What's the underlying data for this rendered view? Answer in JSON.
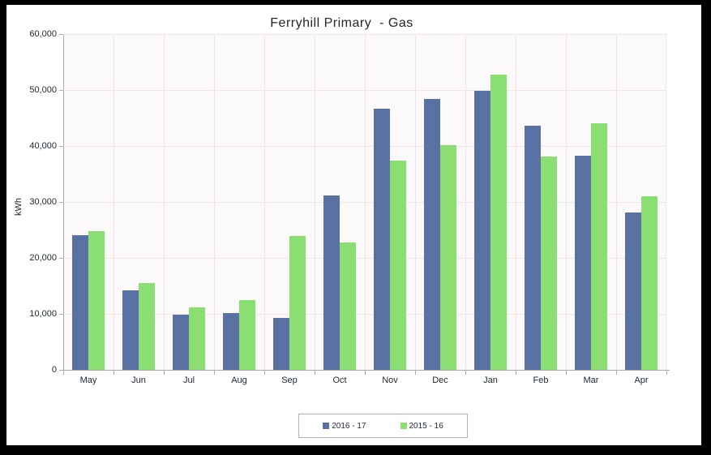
{
  "chart_data": {
    "type": "bar",
    "title": "Ferryhill Primary  - Gas",
    "categories": [
      "May",
      "Jun",
      "Jul",
      "Aug",
      "Sep",
      "Oct",
      "Nov",
      "Dec",
      "Jan",
      "Feb",
      "Mar",
      "Apr"
    ],
    "series": [
      {
        "name": "2016 - 17",
        "color": "#5a71a3",
        "values": [
          24000,
          14200,
          9900,
          10100,
          9300,
          31200,
          46700,
          48400,
          49900,
          43600,
          38200,
          28100
        ]
      },
      {
        "name": "2015 - 16",
        "color": "#8ade72",
        "values": [
          24800,
          15500,
          11100,
          12400,
          23900,
          22800,
          37400,
          40200,
          52700,
          38100,
          44100,
          31000
        ]
      }
    ],
    "xlabel": "",
    "ylabel": "kWh",
    "ylim": [
      0,
      60000
    ],
    "yticks": {
      "values": [
        0,
        10000,
        20000,
        30000,
        40000,
        50000,
        60000
      ],
      "labels": [
        "0",
        "10,000",
        "20,000",
        "30,000",
        "40,000",
        "50,000",
        "60,000"
      ]
    },
    "grid": true,
    "legend_position": "bottom",
    "plot_background": "#fbf9f9",
    "grid_color": "#f0e4e4",
    "axis_color": "#a9a9a9"
  }
}
